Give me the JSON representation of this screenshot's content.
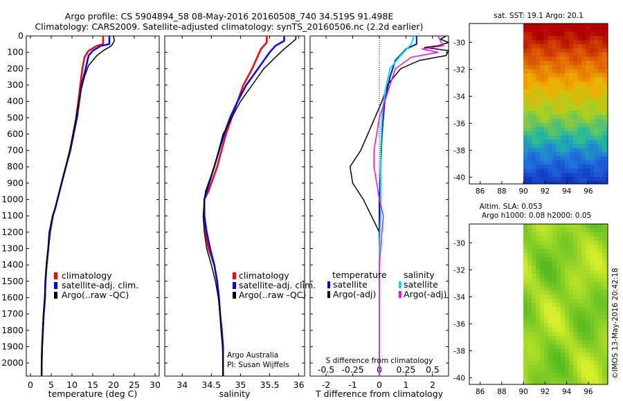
{
  "header": {
    "line1": "Argo profile: CS 5904894_58 08-May-2016 20160508_740 34.519S 91.498E",
    "line2": "Climatology: CARS2009. Satellite-adjusted climatology: synTS_20160506.nc (2.2d earlier)"
  },
  "footer": {
    "credit_line1": "Argo Australia",
    "credit_line2": "PI: Susan Wijffels",
    "stamp": "©IMOS 13-May-2016 20:42:18"
  },
  "colors": {
    "climatology": "#ff0000",
    "satellite_adj": "#0000ff",
    "argo": "#000000",
    "salinity_satellite": "#00e5e5",
    "salinity_argo": "#ff00ff"
  },
  "chart_data": [
    {
      "id": "temperature",
      "type": "line",
      "xlabel": "temperature (deg C)",
      "ylabel": "",
      "xlim": [
        -1,
        31
      ],
      "ylim": [
        2080,
        0
      ],
      "xticks": [
        0,
        5,
        10,
        15,
        20,
        25,
        30
      ],
      "yticks": [
        0,
        100,
        200,
        300,
        400,
        500,
        600,
        700,
        800,
        900,
        1000,
        1100,
        1200,
        1300,
        1400,
        1500,
        1600,
        1700,
        1800,
        1900,
        2000
      ],
      "legend": [
        "climatology",
        "satellite-adj. clim.",
        "Argo(..raw -QC)"
      ],
      "series": [
        {
          "name": "climatology",
          "color": "#ff0000",
          "width": 2.5,
          "points": [
            [
              17.5,
              0
            ],
            [
              17.5,
              50
            ],
            [
              16,
              60
            ],
            [
              14,
              90
            ],
            [
              13,
              130
            ],
            [
              12.5,
              200
            ],
            [
              12,
              300
            ],
            [
              11,
              500
            ],
            [
              9.5,
              700
            ],
            [
              8,
              850
            ],
            [
              7,
              950
            ],
            [
              6,
              1050
            ],
            [
              5.4,
              1100
            ],
            [
              4.6,
              1200
            ],
            [
              4.3,
              1300
            ],
            [
              3.9,
              1400
            ],
            [
              3.6,
              1500
            ],
            [
              3.5,
              1600
            ],
            [
              3.2,
              1700
            ],
            [
              3,
              1800
            ],
            [
              2.8,
              1900
            ],
            [
              2.7,
              2000
            ],
            [
              2.7,
              2080
            ]
          ]
        },
        {
          "name": "satellite-adj. clim.",
          "color": "#0000ff",
          "width": 2.5,
          "points": [
            [
              19,
              0
            ],
            [
              19,
              50
            ],
            [
              17,
              60
            ],
            [
              15,
              90
            ],
            [
              14,
              120
            ],
            [
              13.3,
              200
            ],
            [
              12.3,
              300
            ],
            [
              11.2,
              500
            ],
            [
              9.6,
              700
            ],
            [
              8,
              850
            ],
            [
              7,
              950
            ],
            [
              6,
              1050
            ],
            [
              5.4,
              1100
            ],
            [
              4.7,
              1200
            ],
            [
              4.3,
              1300
            ],
            [
              3.9,
              1400
            ],
            [
              3.6,
              1500
            ],
            [
              3.5,
              1600
            ],
            [
              3.2,
              1700
            ],
            [
              3,
              1800
            ],
            [
              2.8,
              1900
            ],
            [
              2.7,
              2000
            ],
            [
              2.7,
              2080
            ]
          ]
        },
        {
          "name": "Argo(..raw -QC)",
          "color": "#000000",
          "width": 1.5,
          "points": [
            [
              20,
              0
            ],
            [
              20.2,
              30
            ],
            [
              19.5,
              60
            ],
            [
              17.5,
              90
            ],
            [
              16,
              120
            ],
            [
              14,
              180
            ],
            [
              13,
              250
            ],
            [
              12,
              350
            ],
            [
              11,
              500
            ],
            [
              9.5,
              700
            ],
            [
              8,
              850
            ],
            [
              7,
              950
            ],
            [
              6,
              1050
            ],
            [
              5.3,
              1100
            ],
            [
              4.5,
              1200
            ],
            [
              4.2,
              1300
            ],
            [
              3.8,
              1400
            ],
            [
              3.6,
              1500
            ],
            [
              3.4,
              1600
            ],
            [
              3.1,
              1700
            ],
            [
              2.9,
              1800
            ],
            [
              2.8,
              1900
            ],
            [
              2.7,
              2000
            ],
            [
              2.7,
              2080
            ]
          ]
        }
      ]
    },
    {
      "id": "salinity",
      "type": "line",
      "xlabel": "salinity",
      "xlim": [
        33.7,
        36.1
      ],
      "ylim": [
        2080,
        0
      ],
      "xticks": [
        34,
        34.5,
        35,
        35.5,
        36
      ],
      "legend": [
        "climatology",
        "satellite-adj. clim.",
        "Argo(..raw -QC)"
      ],
      "series": [
        {
          "name": "climatology",
          "color": "#ff0000",
          "width": 2.5,
          "points": [
            [
              35.45,
              0
            ],
            [
              35.45,
              40
            ],
            [
              35.35,
              80
            ],
            [
              35.2,
              200
            ],
            [
              35.05,
              300
            ],
            [
              34.95,
              400
            ],
            [
              34.85,
              500
            ],
            [
              34.75,
              600
            ],
            [
              34.6,
              800
            ],
            [
              34.45,
              950
            ],
            [
              34.38,
              1000
            ],
            [
              34.38,
              1100
            ],
            [
              34.4,
              1200
            ],
            [
              34.45,
              1300
            ],
            [
              34.55,
              1400
            ],
            [
              34.6,
              1500
            ],
            [
              34.63,
              1600
            ],
            [
              34.65,
              1700
            ],
            [
              34.67,
              1800
            ],
            [
              34.7,
              1900
            ],
            [
              34.7,
              2000
            ],
            [
              34.7,
              2080
            ]
          ]
        },
        {
          "name": "satellite-adj. clim.",
          "color": "#0000ff",
          "width": 2.5,
          "points": [
            [
              35.75,
              0
            ],
            [
              35.75,
              30
            ],
            [
              35.6,
              60
            ],
            [
              35.5,
              100
            ],
            [
              35.3,
              200
            ],
            [
              35.1,
              300
            ],
            [
              34.95,
              400
            ],
            [
              34.82,
              500
            ],
            [
              34.72,
              600
            ],
            [
              34.55,
              800
            ],
            [
              34.42,
              950
            ],
            [
              34.38,
              1000
            ],
            [
              34.38,
              1100
            ],
            [
              34.42,
              1200
            ],
            [
              34.48,
              1300
            ],
            [
              34.55,
              1400
            ],
            [
              34.6,
              1500
            ],
            [
              34.63,
              1600
            ],
            [
              34.65,
              1700
            ],
            [
              34.68,
              1800
            ],
            [
              34.7,
              1900
            ],
            [
              34.7,
              2000
            ],
            [
              34.7,
              2080
            ]
          ]
        },
        {
          "name": "Argo(..raw -QC)",
          "color": "#000000",
          "width": 1.5,
          "points": [
            [
              35.95,
              0
            ],
            [
              35.95,
              20
            ],
            [
              35.85,
              50
            ],
            [
              35.75,
              80
            ],
            [
              35.6,
              130
            ],
            [
              35.4,
              200
            ],
            [
              35.2,
              300
            ],
            [
              35.0,
              400
            ],
            [
              34.85,
              500
            ],
            [
              34.7,
              600
            ],
            [
              34.55,
              800
            ],
            [
              34.4,
              950
            ],
            [
              34.38,
              1000
            ],
            [
              34.36,
              1100
            ],
            [
              34.38,
              1200
            ],
            [
              34.42,
              1300
            ],
            [
              34.5,
              1400
            ],
            [
              34.57,
              1500
            ],
            [
              34.62,
              1600
            ],
            [
              34.65,
              1700
            ],
            [
              34.67,
              1800
            ],
            [
              34.69,
              1900
            ],
            [
              34.7,
              2000
            ],
            [
              34.7,
              2080
            ]
          ]
        }
      ]
    },
    {
      "id": "difference",
      "type": "line",
      "xlabel": "T difference from climatology",
      "top_axis_label": "S difference from climatology",
      "xlim": [
        -2.6,
        2.6
      ],
      "ylim": [
        2080,
        0
      ],
      "xticks": [
        -2,
        -1,
        0,
        1,
        2
      ],
      "top_ticks": [
        -0.5,
        -0.25,
        0,
        0.25,
        0.5
      ],
      "top_tick_labels": [
        "-0.5",
        "-0.25",
        "0",
        "0.25",
        "0.5"
      ],
      "legend_temperature_title": "temperature",
      "legend_salinity_title": "salinity",
      "legend": [
        "satellite",
        "Argo(-adj)",
        "satellite",
        "Argo(-adj)"
      ],
      "series": [
        {
          "name": "temperature satellite",
          "color": "#0000ff",
          "width": 2,
          "points": [
            [
              1.4,
              0
            ],
            [
              1.4,
              50
            ],
            [
              1.0,
              80
            ],
            [
              0.6,
              150
            ],
            [
              0.4,
              250
            ],
            [
              0.2,
              400
            ],
            [
              0.1,
              600
            ],
            [
              0.05,
              800
            ],
            [
              0,
              1000
            ],
            [
              0,
              1200
            ],
            [
              0,
              2080
            ]
          ]
        },
        {
          "name": "temperature Argo(-adj)",
          "color": "#000000",
          "width": 1.5,
          "points": [
            [
              2.5,
              0
            ],
            [
              2.3,
              20
            ],
            [
              2.6,
              40
            ],
            [
              2.2,
              60
            ],
            [
              1.7,
              70
            ],
            [
              2.6,
              90
            ],
            [
              2.5,
              120
            ],
            [
              1.5,
              150
            ],
            [
              0.8,
              200
            ],
            [
              0.3,
              300
            ],
            [
              0.1,
              400
            ],
            [
              -0.3,
              550
            ],
            [
              -0.7,
              700
            ],
            [
              -1.1,
              800
            ],
            [
              -1.0,
              900
            ],
            [
              -0.6,
              1000
            ],
            [
              -0.3,
              1100
            ],
            [
              0,
              1200
            ],
            [
              0,
              2080
            ]
          ]
        },
        {
          "name": "salinity satellite",
          "color": "#00e5e5",
          "width": 2,
          "points": [
            [
              1.3,
              0
            ],
            [
              1.2,
              50
            ],
            [
              0.8,
              120
            ],
            [
              0.4,
              200
            ],
            [
              0.2,
              350
            ],
            [
              0.1,
              500
            ],
            [
              0.05,
              700
            ],
            [
              0.05,
              900
            ],
            [
              0.05,
              1100
            ],
            [
              0,
              1300
            ],
            [
              0,
              2080
            ]
          ]
        },
        {
          "name": "salinity Argo(-adj)",
          "color": "#ff00ff",
          "width": 1.5,
          "points": [
            [
              2.2,
              0
            ],
            [
              2.4,
              60
            ],
            [
              1.6,
              80
            ],
            [
              2.2,
              100
            ],
            [
              1.2,
              130
            ],
            [
              0.6,
              200
            ],
            [
              0.4,
              300
            ],
            [
              0.2,
              400
            ],
            [
              0.0,
              500
            ],
            [
              -0.1,
              600
            ],
            [
              -0.2,
              700
            ],
            [
              -0.2,
              800
            ],
            [
              -0.1,
              900
            ],
            [
              0.0,
              1000
            ],
            [
              0.15,
              1100
            ],
            [
              0.1,
              1200
            ],
            [
              0.05,
              1300
            ],
            [
              0,
              1400
            ],
            [
              0,
              2080
            ]
          ]
        }
      ]
    },
    {
      "id": "sst_map",
      "type": "heatmap",
      "title": "sat. SST: 19.1 Argo: 20.1",
      "xlim": [
        85,
        97.8
      ],
      "ylim": [
        -40.5,
        -28.6
      ],
      "xticks": [
        86,
        88,
        90,
        92,
        94,
        96
      ],
      "yticks": [
        -30,
        -32,
        -34,
        -36,
        -38,
        -40
      ],
      "data_start_lon": 90,
      "color_stops_by_latitude": [
        {
          "lat": -29,
          "color": "#b00000"
        },
        {
          "lat": -31,
          "color": "#e05a00"
        },
        {
          "lat": -33,
          "color": "#f0b000"
        },
        {
          "lat": -35,
          "color": "#a8d020"
        },
        {
          "lat": -37,
          "color": "#20b8a0"
        },
        {
          "lat": -38.5,
          "color": "#2070e0"
        },
        {
          "lat": -40.5,
          "color": "#1030c0"
        }
      ]
    },
    {
      "id": "sla_map",
      "type": "heatmap",
      "title_line1": "Altim. SLA: 0.053",
      "title_line2": "Argo h1000: 0.08 h2000: 0.05",
      "xlim": [
        85,
        97.8
      ],
      "ylim": [
        -40.5,
        -28.6
      ],
      "xticks": [
        86,
        88,
        90,
        92,
        94,
        96
      ],
      "yticks": [
        -30,
        -32,
        -34,
        -36,
        -38,
        -40
      ],
      "data_start_lon": 90,
      "base_color": "#a8e030"
    }
  ]
}
